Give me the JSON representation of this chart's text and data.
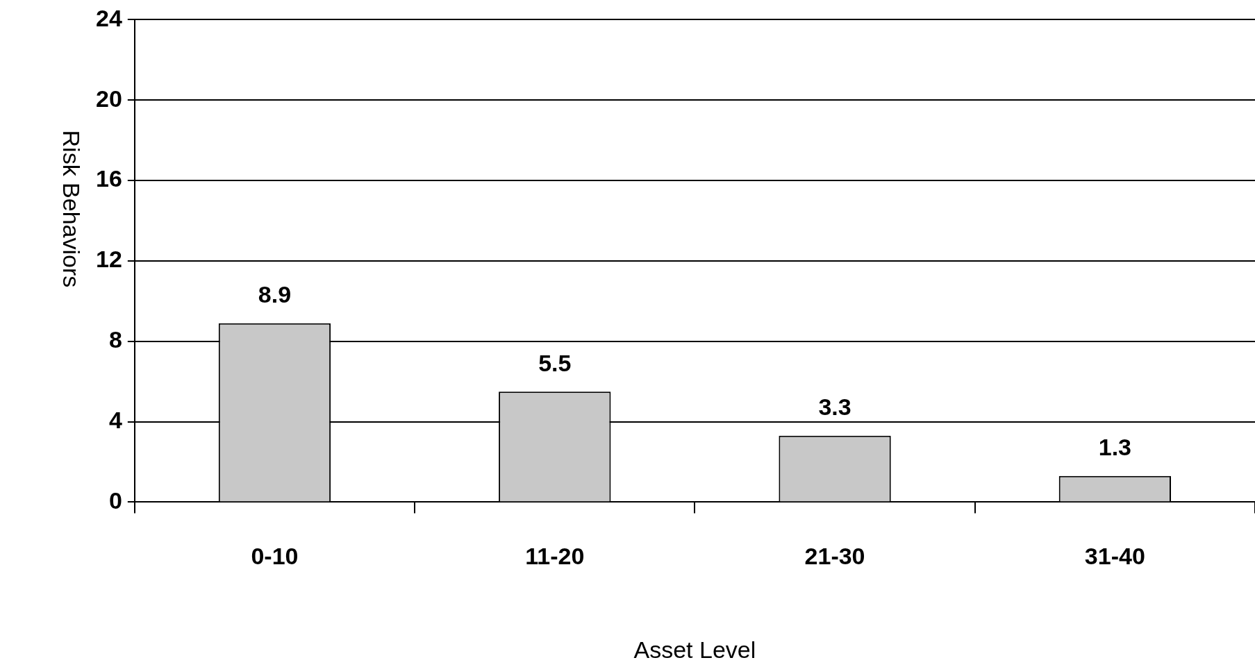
{
  "chart_data": {
    "type": "bar",
    "xlabel": "Asset Level",
    "ylabel": "Risk Behaviors",
    "categories": [
      "0-10",
      "11-20",
      "21-30",
      "31-40"
    ],
    "values": [
      8.9,
      5.5,
      3.3,
      1.3
    ],
    "color": "#c8c8c8",
    "ylim": [
      0,
      24
    ],
    "yticks": [
      0,
      4,
      8,
      12,
      16,
      20,
      24
    ],
    "grid": "y",
    "data_labels": true
  }
}
